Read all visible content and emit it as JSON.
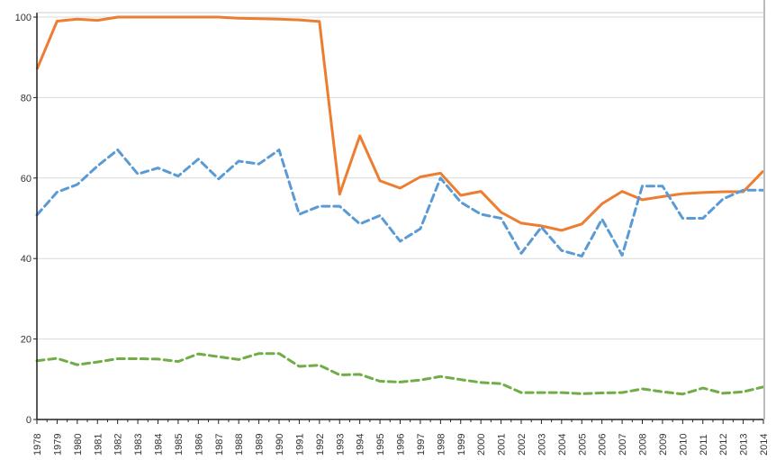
{
  "chart_data": {
    "type": "line",
    "title": "",
    "xlabel": "",
    "ylabel": "",
    "ylim": [
      0,
      100
    ],
    "yticks": [
      "0",
      "20",
      "40",
      "60",
      "80",
      "100"
    ],
    "grid": true,
    "legend": "none",
    "x": [
      "1978",
      "1979",
      "1980",
      "1981",
      "1982",
      "1983",
      "1984",
      "1985",
      "1986",
      "1987",
      "1988",
      "1989",
      "1990",
      "1991",
      "1992",
      "1993",
      "1994",
      "1995",
      "1996",
      "1997",
      "1998",
      "1999",
      "2000",
      "2001",
      "2002",
      "2003",
      "2004",
      "2005",
      "2006",
      "2007",
      "2008",
      "2009",
      "2010",
      "2011",
      "2012",
      "2013",
      "2014"
    ],
    "series": [
      {
        "name": "orange-solid",
        "color": "#ED7D31",
        "style": "solid",
        "values": [
          87,
          99,
          99.5,
          99.2,
          100,
          100,
          100,
          100,
          100,
          100,
          99.7,
          99.6,
          99.5,
          99.3,
          98.9,
          56,
          70.5,
          59.3,
          57.5,
          60.3,
          61.2,
          55.7,
          56.7,
          51.5,
          48.8,
          48.1,
          47,
          48.6,
          53.6,
          56.7,
          54.6,
          55.4,
          56.1,
          56.4,
          56.6,
          56.6,
          61.8
        ]
      },
      {
        "name": "blue-dashed",
        "color": "#5B9BD5",
        "style": "dashed",
        "values": [
          50.8,
          56.5,
          58.4,
          63,
          67,
          61,
          62.5,
          60.5,
          64.7,
          59.8,
          64.2,
          63.5,
          67,
          51,
          53,
          53,
          48.6,
          50.7,
          44.3,
          47.4,
          60,
          54,
          51,
          50,
          41.3,
          47.8,
          42,
          40.6,
          49.8,
          40.8,
          58,
          58,
          50,
          50,
          54.8,
          57,
          57
        ]
      },
      {
        "name": "green-dashed",
        "color": "#70AD47",
        "style": "dashed",
        "values": [
          14.6,
          15.2,
          13.6,
          14.3,
          15.1,
          15.1,
          15,
          14.4,
          16.3,
          15.6,
          14.9,
          16.4,
          16.4,
          13.2,
          13.5,
          11.1,
          11.2,
          9.5,
          9.3,
          9.8,
          10.7,
          9.9,
          9.2,
          8.9,
          6.7,
          6.7,
          6.7,
          6.4,
          6.6,
          6.7,
          7.6,
          6.9,
          6.3,
          7.8,
          6.5,
          6.9,
          8.1
        ]
      }
    ]
  }
}
